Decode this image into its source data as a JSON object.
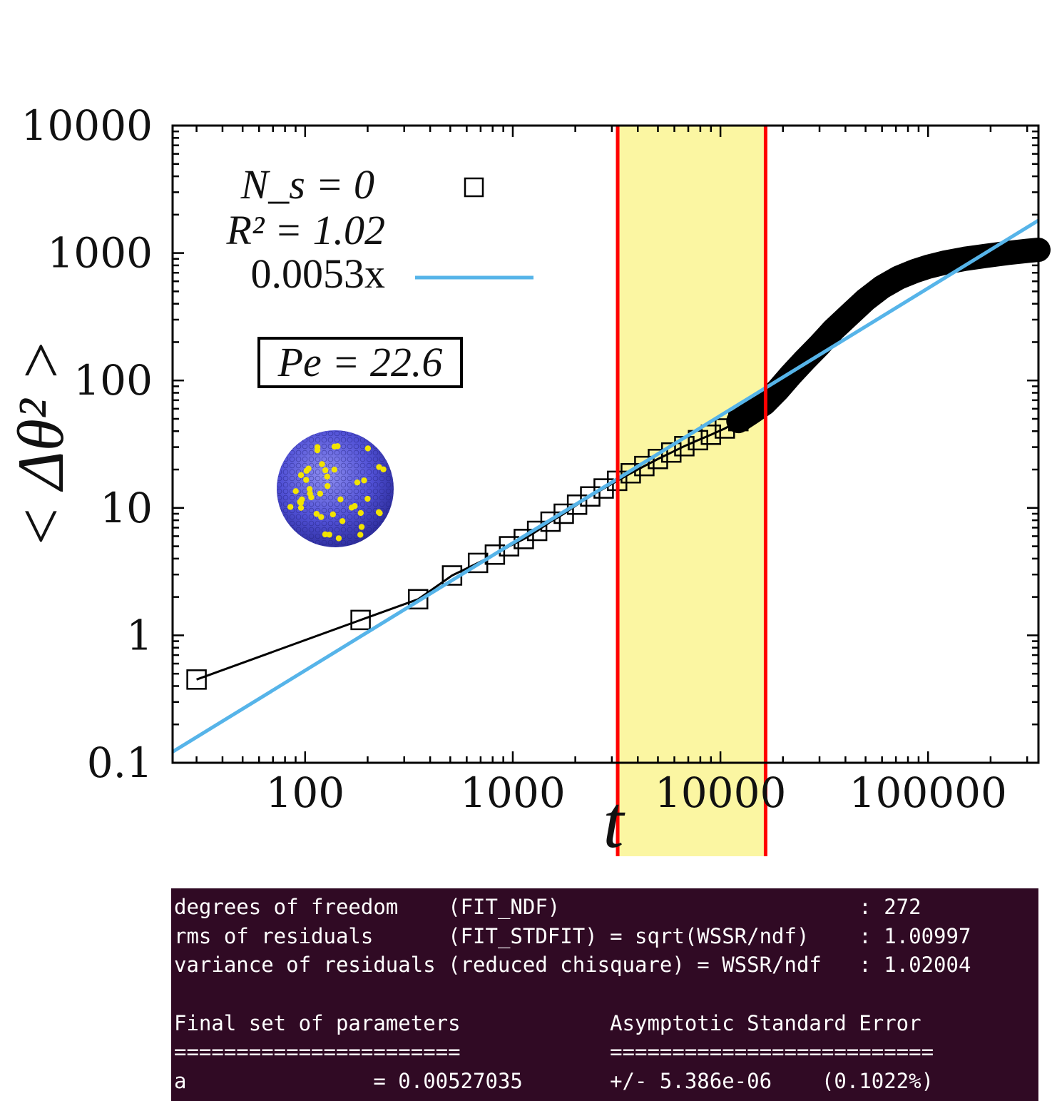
{
  "chart_data": {
    "type": "scatter",
    "xlabel": "t",
    "ylabel": "< Δθ² >",
    "xscale": "log",
    "yscale": "log",
    "xlim": [
      23,
      340000
    ],
    "ylim": [
      0.1,
      10000
    ],
    "x_ticks": [
      "100",
      "1000",
      "10000",
      "100000"
    ],
    "y_ticks": [
      "0.1",
      "1",
      "10",
      "100",
      "1000",
      "10000"
    ],
    "grid": false,
    "legend_position": "top-left",
    "legend": {
      "ns_label": "N_s = 0",
      "r2_label": "R² = 1.02",
      "fit_label": "0.0053x"
    },
    "pe_label": "Pe = 22.6",
    "series": [
      {
        "name": "N_s = 0",
        "style": "black line with open squares",
        "color": "#000000",
        "x": [
          30,
          185,
          350,
          510,
          680,
          820,
          960,
          1130,
          1310,
          1520,
          1760,
          2040,
          2360,
          2740,
          3180,
          3700,
          4300,
          5000,
          5800,
          6700,
          7800,
          9000,
          10500,
          12200,
          14100,
          16300,
          19000,
          22000,
          25500,
          30000,
          35000,
          42000,
          50000,
          60000,
          72000,
          86000,
          100000,
          120000,
          150000,
          190000,
          240000,
          300000,
          340000
        ],
        "y": [
          0.45,
          1.32,
          1.92,
          2.95,
          3.7,
          4.3,
          5.0,
          5.7,
          6.6,
          7.8,
          9.0,
          10.6,
          12.3,
          14.2,
          16.3,
          18.7,
          21.3,
          24.2,
          27.2,
          30.5,
          34.0,
          37.5,
          42.0,
          48.0,
          56.0,
          66.0,
          85.0,
          112.0,
          145.0,
          190.0,
          250.0,
          330.0,
          430.0,
          540.0,
          640.0,
          720.0,
          780.0,
          840.0,
          900.0,
          950.0,
          1000.0,
          1040.0,
          1060.0
        ]
      },
      {
        "name": "0.0053x",
        "style": "line",
        "color": "#56b4e9",
        "slope": 0.0053,
        "x": [
          23,
          340000
        ],
        "y": [
          0.1219,
          1802
        ]
      }
    ],
    "fit_window": {
      "x": [
        3200,
        16500
      ],
      "fill": "#fbf59a",
      "edge_color": "#ff0000"
    }
  },
  "terminal": {
    "background": "#300a24",
    "lines": [
      "degrees of freedom    (FIT_NDF)                        : 272",
      "rms of residuals      (FIT_STDFIT) = sqrt(WSSR/ndf)    : 1.00997",
      "variance of residuals (reduced chisquare) = WSSR/ndf   : 1.02004",
      "",
      "Final set of parameters            Asymptotic Standard Error",
      "=======================            ==========================",
      "a               = 0.00527035       +/- 5.386e-06    (0.1022%)"
    ]
  }
}
